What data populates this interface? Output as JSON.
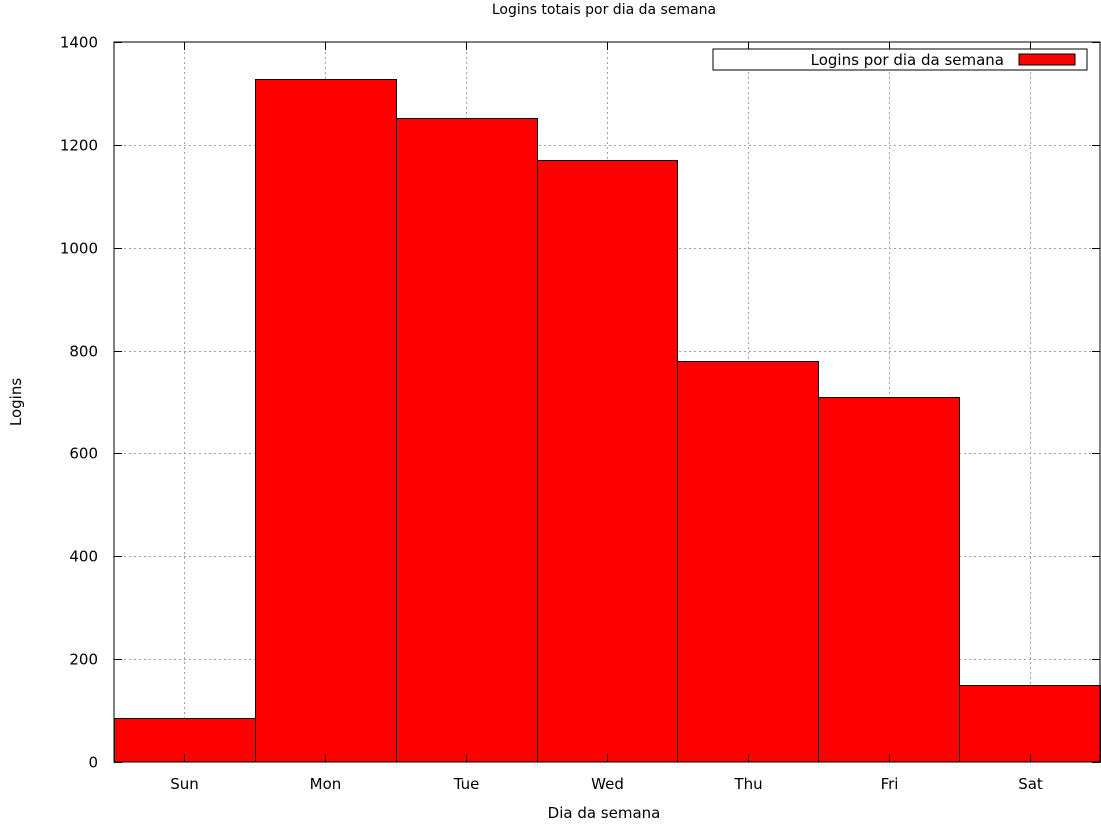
{
  "chart_data": {
    "type": "bar",
    "title": "Logins totais por dia da semana",
    "xlabel": "Dia da semana",
    "ylabel": "Logins",
    "categories": [
      "Sun",
      "Mon",
      "Tue",
      "Wed",
      "Thu",
      "Fri",
      "Sat"
    ],
    "series": [
      {
        "name": "Logins por dia da semana",
        "values": [
          85,
          1328,
          1252,
          1170,
          780,
          710,
          150
        ],
        "color": "#ff0000"
      }
    ],
    "ylim": [
      0,
      1400
    ],
    "yticks": [
      0,
      200,
      400,
      600,
      800,
      1000,
      1200,
      1400
    ],
    "grid": true,
    "legend_position": "top-right"
  }
}
